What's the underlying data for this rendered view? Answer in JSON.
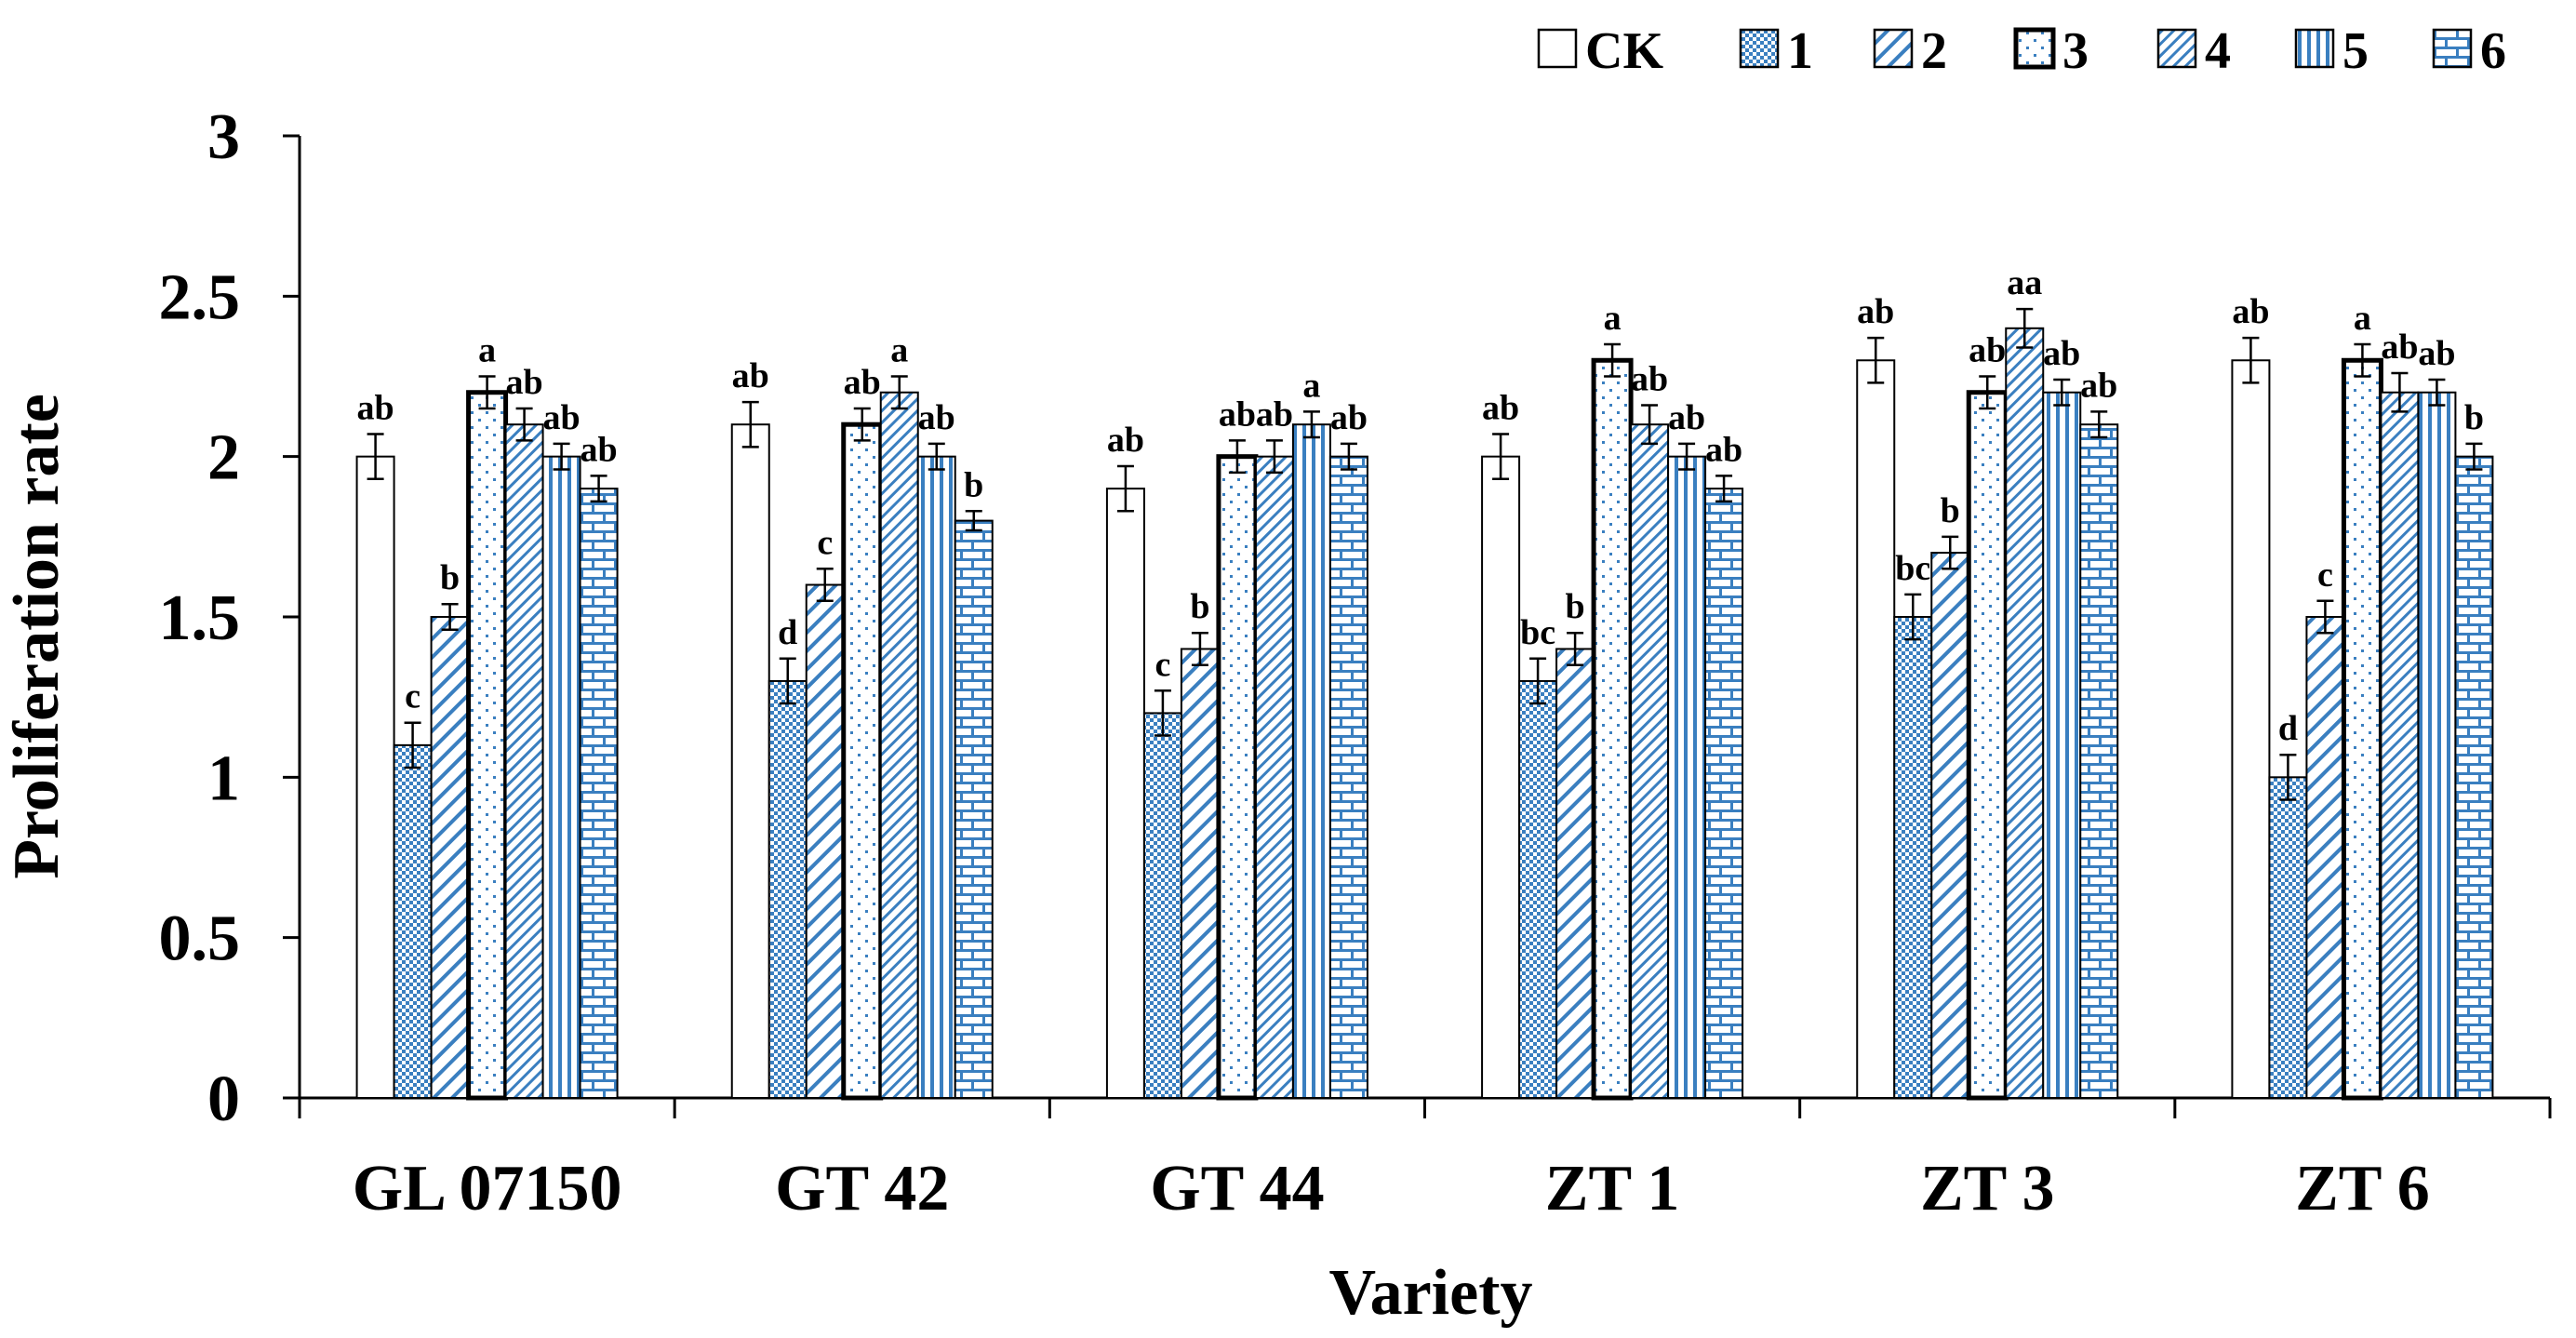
{
  "chart_data": {
    "type": "bar",
    "xlabel": "Variety",
    "ylabel": "Proliferation rate",
    "ylim": [
      0,
      3
    ],
    "yticks": [
      "0",
      "0.5",
      "1",
      "1.5",
      "2",
      "2.5",
      "3"
    ],
    "grid": false,
    "legend_position": "top-right",
    "categories": [
      "GL 07150",
      "GT 42",
      "GT 44",
      "ZT 1",
      "ZT 3",
      "ZT 6"
    ],
    "series": [
      {
        "name": "CK",
        "pattern": "blank",
        "color": "#ffffff",
        "values": [
          2.0,
          2.1,
          1.9,
          2.0,
          2.3,
          2.3
        ],
        "errors": [
          0.07,
          0.07,
          0.07,
          0.07,
          0.07,
          0.07
        ],
        "labels": [
          "ab",
          "ab",
          "ab",
          "ab",
          "ab",
          "ab"
        ]
      },
      {
        "name": "1",
        "pattern": "dense-dots",
        "color": "#4a90c8",
        "values": [
          1.1,
          1.3,
          1.2,
          1.3,
          1.5,
          1.0
        ],
        "errors": [
          0.07,
          0.07,
          0.07,
          0.07,
          0.07,
          0.07
        ],
        "labels": [
          "c",
          "d",
          "c",
          "bc",
          "bc",
          "d"
        ]
      },
      {
        "name": "2",
        "pattern": "wide-diagonal",
        "color": "#4a90c8",
        "values": [
          1.5,
          1.6,
          1.4,
          1.4,
          1.7,
          1.5
        ],
        "errors": [
          0.04,
          0.05,
          0.05,
          0.05,
          0.05,
          0.05
        ],
        "labels": [
          "b",
          "c",
          "b",
          "b",
          "b",
          "c"
        ]
      },
      {
        "name": "3",
        "pattern": "sparse-dots",
        "color": "#4a90c8",
        "values": [
          2.2,
          2.1,
          2.0,
          2.3,
          2.2,
          2.3
        ],
        "errors": [
          0.05,
          0.05,
          0.05,
          0.05,
          0.05,
          0.05
        ],
        "labels": [
          "a",
          "ab",
          "ab",
          "a",
          "ab",
          "a"
        ]
      },
      {
        "name": "4",
        "pattern": "narrow-diagonal",
        "color": "#4a90c8",
        "values": [
          2.1,
          2.2,
          2.0,
          2.1,
          2.4,
          2.2
        ],
        "errors": [
          0.05,
          0.05,
          0.05,
          0.06,
          0.06,
          0.06
        ],
        "labels": [
          "ab",
          "a",
          "ab",
          "ab",
          "aa",
          "ab"
        ]
      },
      {
        "name": "5",
        "pattern": "vertical-lines",
        "color": "#4a90c8",
        "values": [
          2.0,
          2.0,
          2.1,
          2.0,
          2.2,
          2.2
        ],
        "errors": [
          0.04,
          0.04,
          0.04,
          0.04,
          0.04,
          0.04
        ],
        "labels": [
          "ab",
          "ab",
          "a",
          "ab",
          "ab",
          "ab"
        ]
      },
      {
        "name": "6",
        "pattern": "brick",
        "color": "#4a90c8",
        "values": [
          1.9,
          1.8,
          2.0,
          1.9,
          2.1,
          2.0
        ],
        "errors": [
          0.04,
          0.03,
          0.04,
          0.04,
          0.04,
          0.04
        ],
        "labels": [
          "ab",
          "b",
          "ab",
          "ab",
          "ab",
          "b"
        ]
      }
    ]
  }
}
